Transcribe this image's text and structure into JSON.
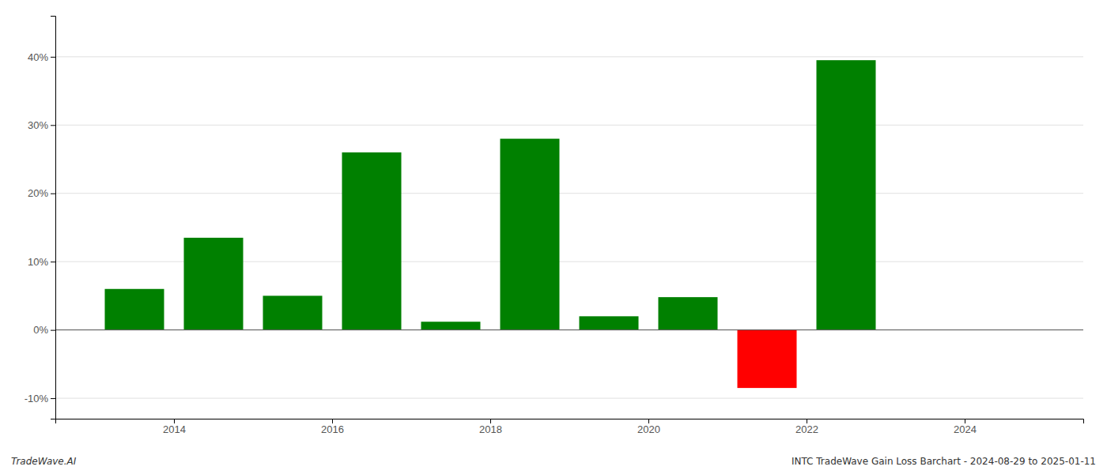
{
  "chart_data": {
    "type": "bar",
    "x": [
      2013.5,
      2014.5,
      2015.5,
      2016.5,
      2017.5,
      2018.5,
      2019.5,
      2020.5,
      2021.5,
      2022.5
    ],
    "values": [
      6.0,
      13.5,
      5.0,
      26.0,
      1.2,
      28.0,
      2.0,
      4.8,
      -8.5,
      39.5
    ],
    "colors": [
      "#008000",
      "#008000",
      "#008000",
      "#008000",
      "#008000",
      "#008000",
      "#008000",
      "#008000",
      "#ff0000",
      "#008000"
    ],
    "xlim": [
      2012.5,
      2025.5
    ],
    "xticks": [
      2014,
      2016,
      2018,
      2020,
      2022,
      2024
    ],
    "ylim": [
      -13,
      46
    ],
    "yticks": [
      {
        "value": -10,
        "label": "-10%"
      },
      {
        "value": 0,
        "label": "0%"
      },
      {
        "value": 10,
        "label": "10%"
      },
      {
        "value": 20,
        "label": "20%"
      },
      {
        "value": 30,
        "label": "30%"
      },
      {
        "value": 40,
        "label": "40%"
      }
    ],
    "grid": true,
    "annotations": [
      "TradeWave.AI",
      "INTC TradeWave Gain Loss Barchart - 2024-08-29 to 2025-01-11"
    ]
  }
}
